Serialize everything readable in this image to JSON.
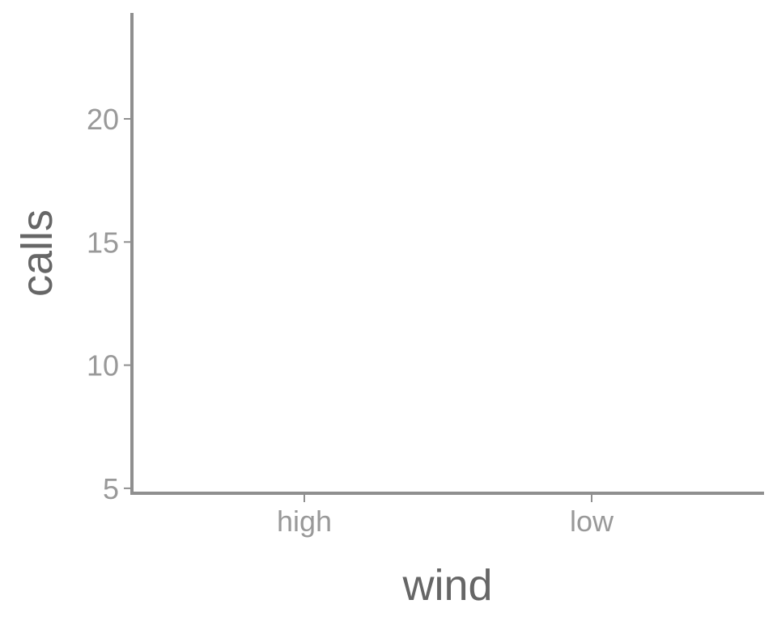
{
  "chart_data": {
    "type": "scatter",
    "categories": [
      "high",
      "low"
    ],
    "series": [],
    "xlabel": "wind",
    "ylabel": "calls",
    "ylim": [
      4.8,
      24.3
    ],
    "yticks": [
      5,
      10,
      15,
      20
    ],
    "grid": false,
    "legend": "none",
    "colors": {
      "axis": "#8f8f8f",
      "tick_text": "#999999",
      "title_text": "#666666"
    }
  }
}
